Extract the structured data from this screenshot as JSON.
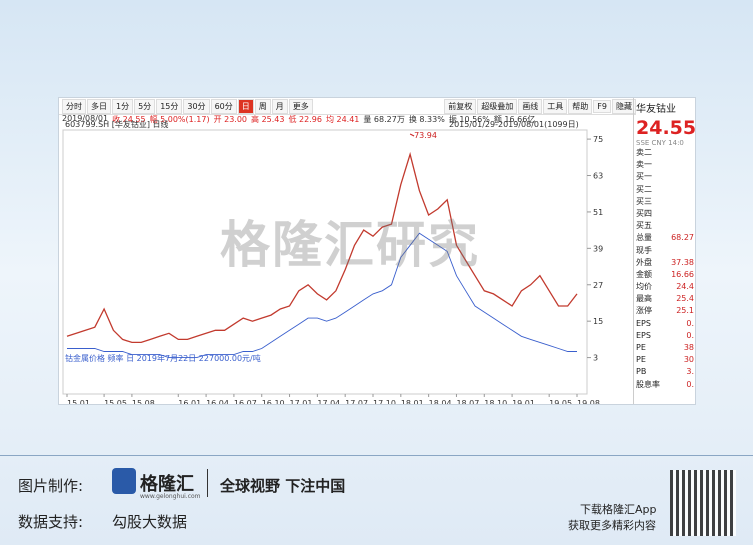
{
  "toolbar": {
    "left": [
      "分时",
      "多日",
      "1分",
      "5分",
      "15分",
      "30分",
      "60分",
      "日",
      "周",
      "月",
      "更多"
    ],
    "right": [
      "前复权",
      "超级叠加",
      "画线",
      "工具",
      "帮助",
      "F9",
      "隐藏"
    ]
  },
  "info": [
    "2019/08/01",
    "收 24.55",
    "幅 5.00%(1.17)",
    "开 23.00",
    "高 25.43",
    "低 22.96",
    "均 24.41",
    "量 68.27万",
    "换 8.33%",
    "振 10.56%",
    "额 16.66亿"
  ],
  "chart_data": {
    "type": "line",
    "title": "603799.SH [华友钴业] 日线",
    "subtitle": "2015/01/29-2019/08/01(1099日)",
    "categories": [
      "15.01",
      null,
      null,
      null,
      "15.05",
      null,
      null,
      "15.08",
      null,
      null,
      null,
      null,
      "16.01",
      null,
      null,
      "16.04",
      null,
      null,
      "16.07",
      null,
      null,
      "16.10",
      null,
      null,
      "17.01",
      null,
      null,
      "17.04",
      null,
      null,
      "17.07",
      null,
      null,
      "17.10",
      null,
      null,
      "18.01",
      null,
      null,
      "18.04",
      null,
      null,
      "18.07",
      null,
      null,
      "18.10",
      null,
      null,
      "19.01",
      null,
      null,
      null,
      "19.05",
      null,
      null,
      "19.08"
    ],
    "series": [
      {
        "name": "华友钴业",
        "color": "#c23a2e",
        "values": [
          10,
          11,
          12,
          13,
          19,
          12,
          9,
          8,
          8,
          9,
          10,
          11,
          9,
          9,
          10,
          11,
          12,
          12,
          14,
          16,
          15,
          16,
          17,
          19,
          20,
          25,
          27,
          24,
          22,
          25,
          32,
          40,
          45,
          43,
          46,
          47,
          60,
          70,
          58,
          50,
          52,
          55,
          40,
          35,
          30,
          25,
          24,
          22,
          20,
          25,
          27,
          30,
          25,
          20,
          20,
          24
        ]
      },
      {
        "name": "钴金属价格 频率 日 2019年7月22日 227000.00元/吨",
        "color": "#3a5fcd",
        "values": [
          6,
          6,
          6,
          6,
          5,
          5,
          5,
          4,
          4,
          4,
          4,
          3,
          3,
          3,
          3,
          4,
          4,
          4,
          4,
          5,
          5,
          6,
          8,
          10,
          12,
          14,
          16,
          16,
          15,
          16,
          18,
          20,
          22,
          24,
          25,
          27,
          36,
          40,
          44,
          42,
          40,
          38,
          30,
          25,
          20,
          18,
          16,
          14,
          12,
          10,
          9,
          8,
          7,
          6,
          5,
          5
        ]
      }
    ],
    "annotation": {
      "text": "73.94",
      "index": 37
    },
    "ylim": [
      -9,
      78
    ],
    "yticks": [
      75,
      63,
      51,
      39,
      27,
      15,
      3
    ],
    "grid": false
  },
  "side_panel": {
    "name": "华友钴业",
    "price": "24.55",
    "market": "SSE CNY 14:0",
    "rows": [
      [
        "卖二",
        ""
      ],
      [
        "卖一",
        ""
      ],
      [
        "买一",
        ""
      ],
      [
        "买二",
        ""
      ],
      [
        "买三",
        ""
      ],
      [
        "买四",
        ""
      ],
      [
        "买五",
        ""
      ],
      [
        "总量",
        "68.27"
      ],
      [
        "现手",
        ""
      ],
      [
        "外盘",
        "37.38"
      ],
      [
        "金额",
        "16.66"
      ],
      [
        "均价",
        "24.4"
      ],
      [
        "最高",
        "25.4"
      ],
      [
        "涨停",
        "25.1"
      ],
      [
        "EPS",
        "0."
      ],
      [
        "EPS",
        "0."
      ],
      [
        "PE",
        "38"
      ],
      [
        "PE",
        "30"
      ],
      [
        "PB",
        "3."
      ],
      [
        "股息率",
        "0."
      ]
    ]
  },
  "watermark": "格隆汇研究",
  "footer": {
    "made_by": "图片制作:",
    "logo": "格隆汇",
    "url": "www.gelonghui.com",
    "slogan": "全球视野 下注中国",
    "data_by": "数据支持:",
    "data_source": "勾股大数据",
    "download": "下载格隆汇App",
    "more": "获取更多精彩内容"
  }
}
